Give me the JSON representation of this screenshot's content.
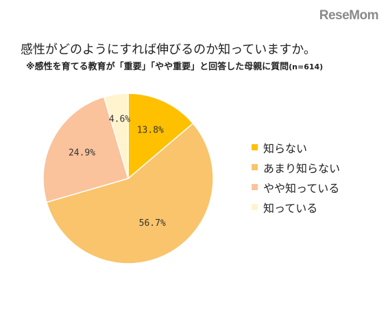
{
  "logo": {
    "text": "ReseMom"
  },
  "title": "感性がどのようにすれば伸びるのか知っていますか。",
  "subtitle": {
    "text": "※感性を育てる教育が「重要」「やや重要」と回答した母親に質問",
    "n": "(n=614)"
  },
  "chart_data": {
    "type": "pie",
    "title": "感性がどのようにすれば伸びるのか知っていますか。",
    "start": "12 o'clock",
    "direction": "clockwise",
    "legend_position": "right",
    "slices": [
      {
        "label": "知らない",
        "value": 13.8,
        "display": "13.8%",
        "color": "#FFC000"
      },
      {
        "label": "あまり知らない",
        "value": 56.7,
        "display": "56.7%",
        "color": "#F9C46B"
      },
      {
        "label": "やや知っている",
        "value": 24.9,
        "display": "24.9%",
        "color": "#FAC39C"
      },
      {
        "label": "知っている",
        "value": 4.6,
        "display": "4.6%",
        "color": "#FFF4CE"
      }
    ]
  }
}
